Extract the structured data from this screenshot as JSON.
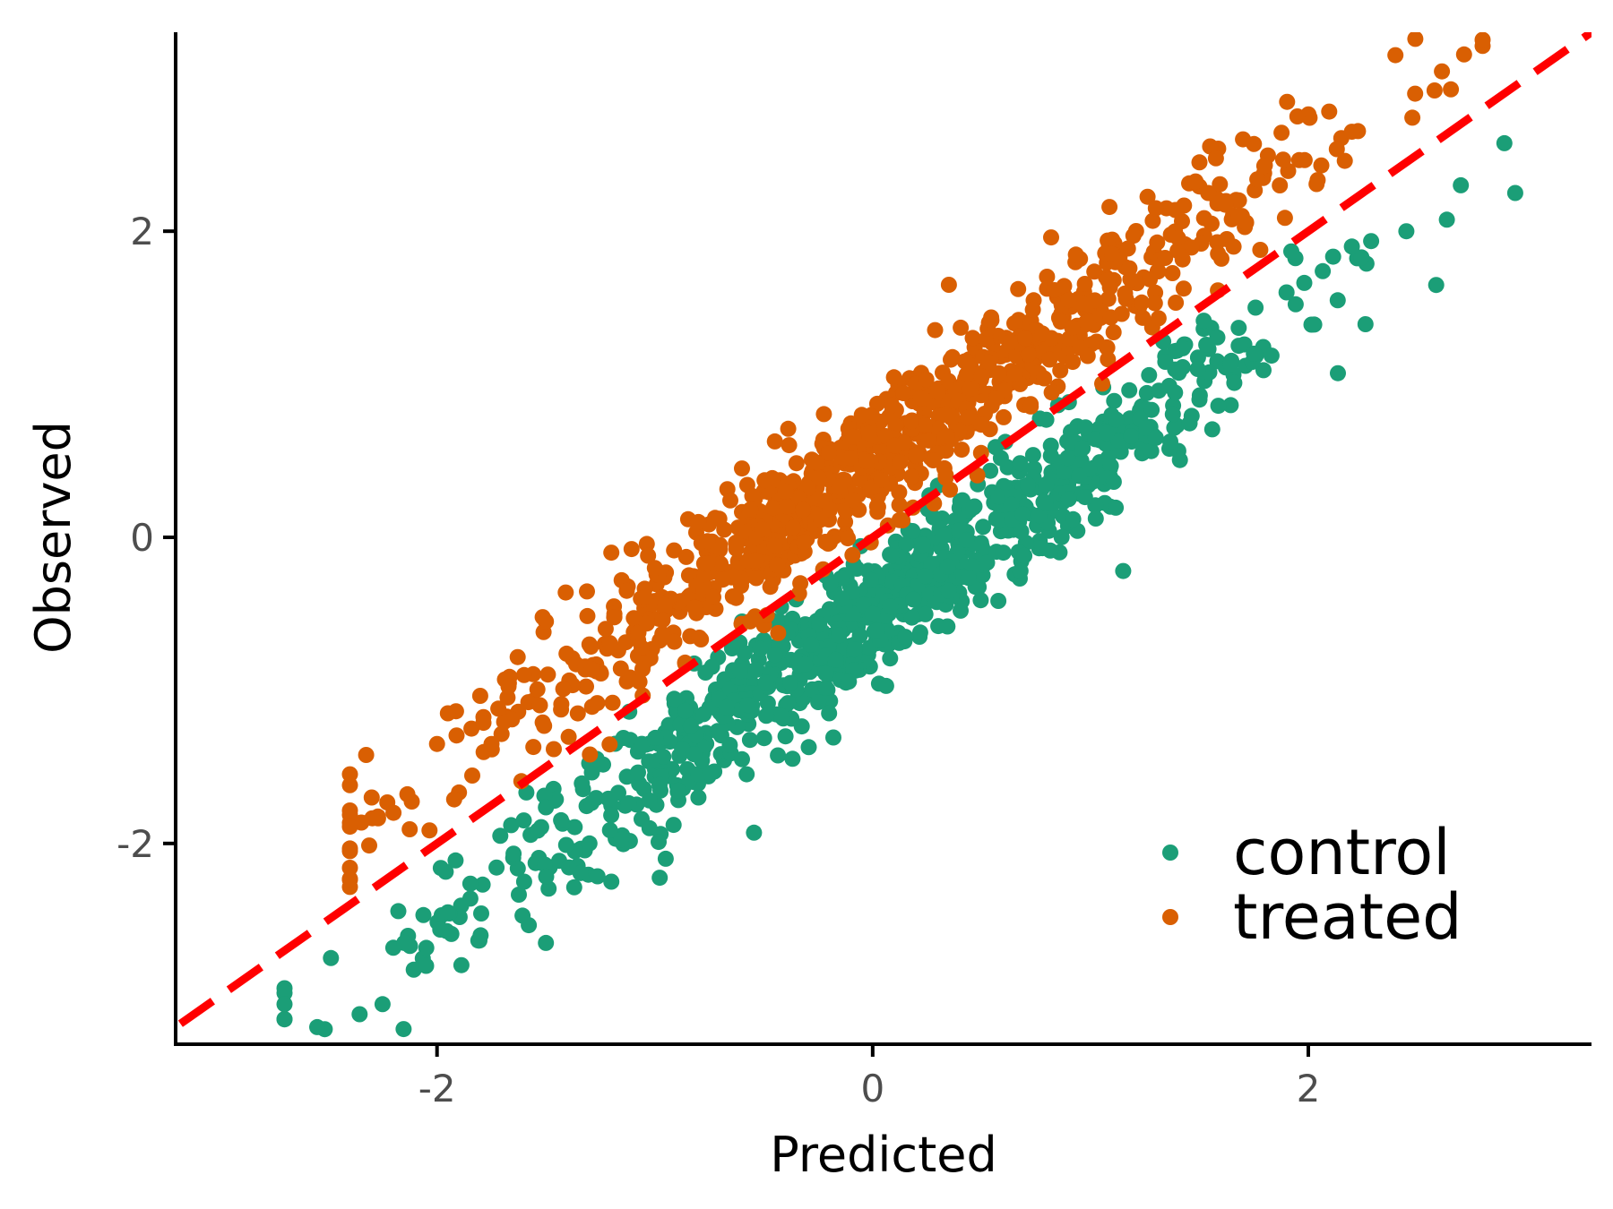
{
  "chart_data": {
    "type": "scatter",
    "title": "",
    "xlabel": "Predicted",
    "ylabel": "Observed",
    "xlim": [
      -3.2,
      3.3
    ],
    "ylim": [
      -3.3,
      3.3
    ],
    "x_ticks": [
      {
        "value": -2,
        "label": "-2"
      },
      {
        "value": 0,
        "label": "0"
      },
      {
        "value": 2,
        "label": "2"
      }
    ],
    "y_ticks": [
      {
        "value": -2,
        "label": "-2"
      },
      {
        "value": 0,
        "label": "0"
      },
      {
        "value": 2,
        "label": "2"
      }
    ],
    "grid": false,
    "legend": {
      "placement": "bottom-right"
    },
    "reference_line": {
      "type": "identity",
      "style": "dashed",
      "color": "#ff0000"
    },
    "series": [
      {
        "name": "control",
        "color": "#1b9e77",
        "description": "cloud of ~900 points around y = x - 0.5, x from about -2.7 to 2.9",
        "points": [
          {
            "x": -2.55,
            "y": -3.2
          },
          {
            "x": -2.7,
            "y": -3.05
          },
          {
            "x": -2.25,
            "y": -3.05
          },
          {
            "x": -2.15,
            "y": -2.65
          },
          {
            "x": -2.05,
            "y": -2.8
          },
          {
            "x": -1.95,
            "y": -2.45
          },
          {
            "x": -1.8,
            "y": -2.6
          },
          {
            "x": -1.6,
            "y": -2.25
          },
          {
            "x": -1.5,
            "y": -2.65
          },
          {
            "x": -1.3,
            "y": -2.0
          },
          {
            "x": -1.2,
            "y": -2.25
          },
          {
            "x": -0.95,
            "y": -2.1
          },
          {
            "x": -0.8,
            "y": -1.7
          },
          {
            "x": -0.6,
            "y": -1.45
          },
          {
            "x": -0.4,
            "y": -1.3
          },
          {
            "x": -0.2,
            "y": -1.15
          },
          {
            "x": 0.0,
            "y": -0.5
          },
          {
            "x": 0.15,
            "y": -0.65
          },
          {
            "x": 0.35,
            "y": -0.35
          },
          {
            "x": 0.6,
            "y": -0.1
          },
          {
            "x": 0.9,
            "y": 0.25
          },
          {
            "x": 1.15,
            "y": -0.22
          },
          {
            "x": 1.3,
            "y": 0.65
          },
          {
            "x": 1.5,
            "y": 0.9
          },
          {
            "x": 1.75,
            "y": 1.2
          },
          {
            "x": 1.9,
            "y": 1.6
          },
          {
            "x": 2.2,
            "y": 1.9
          },
          {
            "x": 2.45,
            "y": 2.0
          },
          {
            "x": 2.7,
            "y": 2.3
          },
          {
            "x": 2.95,
            "y": 2.25
          }
        ]
      },
      {
        "name": "treated",
        "color": "#d95f02",
        "description": "cloud of ~900 points around y = x + 0.5, x from about -2.4 to 2.8",
        "points": [
          {
            "x": -2.4,
            "y": -2.05
          },
          {
            "x": -2.3,
            "y": -1.7
          },
          {
            "x": -2.2,
            "y": -1.8
          },
          {
            "x": -2.0,
            "y": -1.35
          },
          {
            "x": -1.95,
            "y": -1.15
          },
          {
            "x": -1.75,
            "y": -1.35
          },
          {
            "x": -1.6,
            "y": -0.9
          },
          {
            "x": -1.5,
            "y": -0.55
          },
          {
            "x": -1.3,
            "y": -0.7
          },
          {
            "x": -1.2,
            "y": -0.1
          },
          {
            "x": -1.0,
            "y": -0.2
          },
          {
            "x": -0.8,
            "y": 0.1
          },
          {
            "x": -0.6,
            "y": 0.45
          },
          {
            "x": -0.4,
            "y": 0.3
          },
          {
            "x": -0.2,
            "y": 0.55
          },
          {
            "x": -0.05,
            "y": 0.8
          },
          {
            "x": 0.1,
            "y": 0.6
          },
          {
            "x": 0.3,
            "y": 0.95
          },
          {
            "x": 0.35,
            "y": 1.65
          },
          {
            "x": 0.5,
            "y": 1.05
          },
          {
            "x": 0.7,
            "y": 1.3
          },
          {
            "x": 0.9,
            "y": 1.55
          },
          {
            "x": 1.1,
            "y": 1.85
          },
          {
            "x": 1.3,
            "y": 2.15
          },
          {
            "x": 1.5,
            "y": 2.45
          },
          {
            "x": 1.7,
            "y": 2.6
          },
          {
            "x": 1.95,
            "y": 2.75
          },
          {
            "x": 2.2,
            "y": 2.65
          },
          {
            "x": 2.4,
            "y": 3.15
          },
          {
            "x": 2.8,
            "y": 3.25
          }
        ]
      }
    ]
  }
}
